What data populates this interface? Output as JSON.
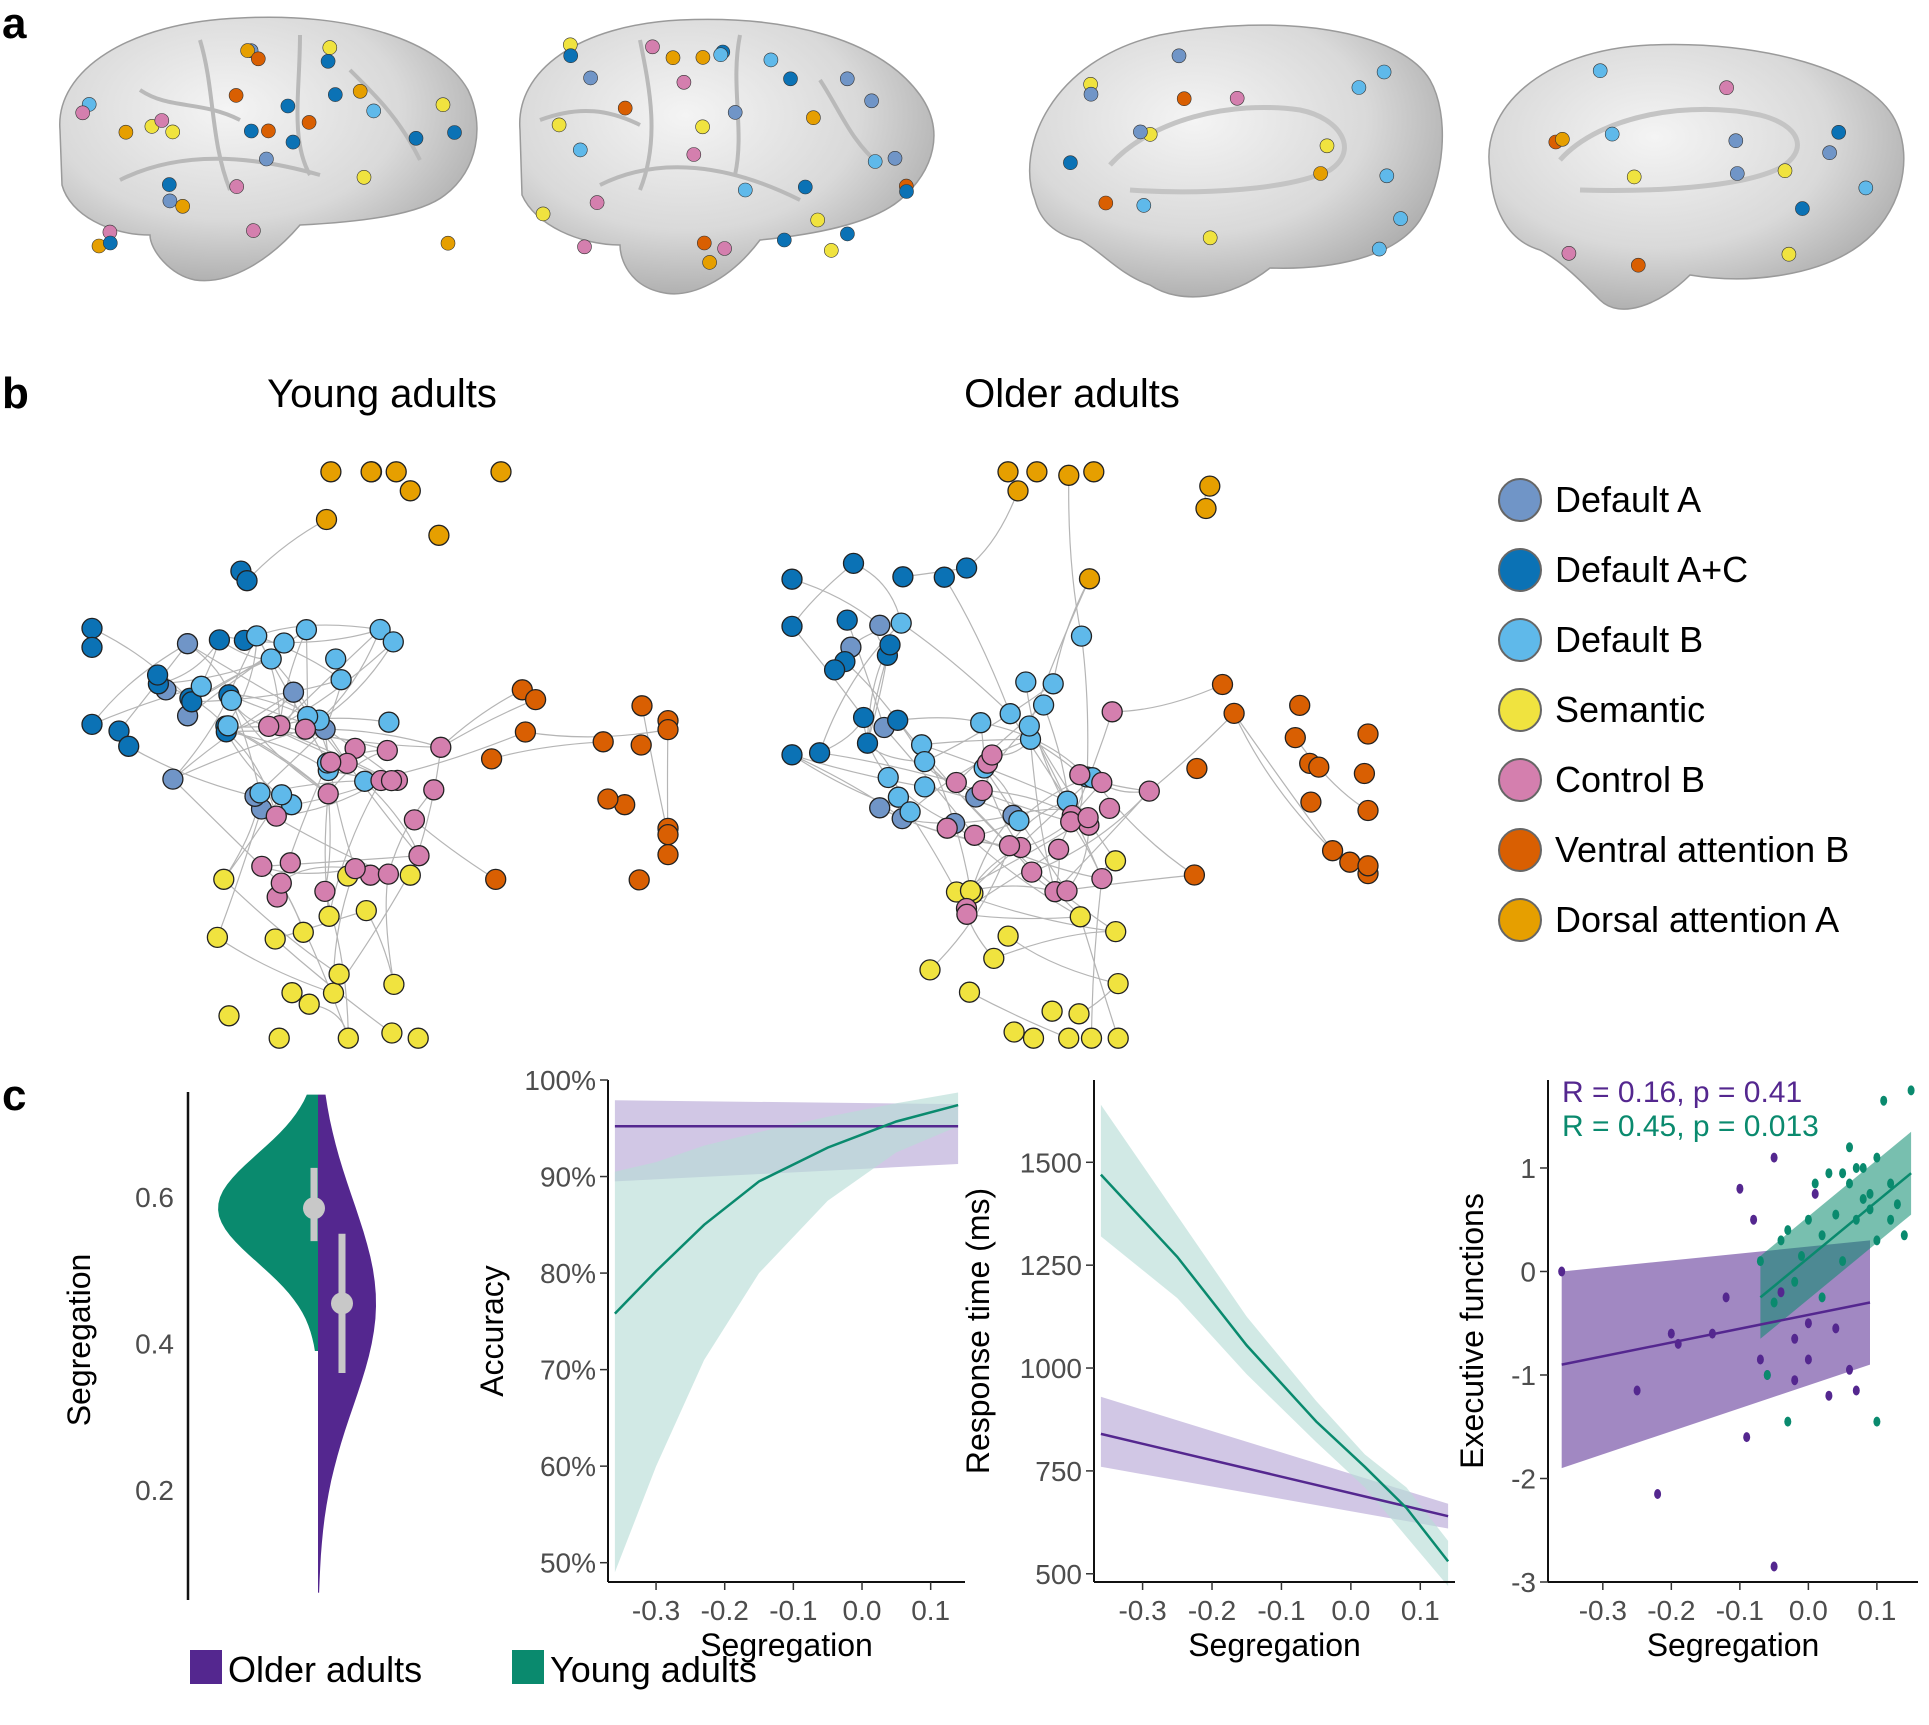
{
  "panels": {
    "a": "a",
    "b": "b",
    "c": "c"
  },
  "networks": {
    "young_title": "Young adults",
    "older_title": "Older adults",
    "legend": [
      {
        "label": "Default A",
        "color": "#7095c7"
      },
      {
        "label": "Default A+C",
        "color": "#0b72b5"
      },
      {
        "label": "Default B",
        "color": "#5fb9ea"
      },
      {
        "label": "Semantic",
        "color": "#f0e33f"
      },
      {
        "label": "Control  B",
        "color": "#d47fae"
      },
      {
        "label": "Ventral attention B",
        "color": "#d95f02"
      },
      {
        "label": "Dorsal attention A",
        "color": "#e69f00"
      }
    ]
  },
  "colors": {
    "older": "#54278f",
    "young": "#0a8a6e",
    "older_band": "#c9bde0",
    "young_band": "#b9ddd7"
  },
  "group_legend": {
    "older": "Older adults",
    "young": "Young adults"
  },
  "chart_data": [
    {
      "type": "violin",
      "ylabel": "Segregation",
      "ylim": [
        0.05,
        0.76
      ],
      "yticks": [
        "0.2",
        "0.4",
        "0.6"
      ],
      "series": [
        {
          "name": "Young adults",
          "median": 0.585,
          "iqr": [
            0.54,
            0.64
          ],
          "range": [
            0.39,
            0.74
          ]
        },
        {
          "name": "Older adults",
          "median": 0.455,
          "iqr": [
            0.36,
            0.55
          ],
          "range": [
            0.06,
            0.74
          ]
        }
      ]
    },
    {
      "type": "line",
      "xlabel": "Segregation",
      "ylabel": "Accuracy",
      "xlim": [
        -0.37,
        0.15
      ],
      "ylim": [
        48,
        100
      ],
      "xticks": [
        "-0.3",
        "-0.2",
        "-0.1",
        "0.0",
        "0.1"
      ],
      "yticks": [
        "50%",
        "60%",
        "70%",
        "80%",
        "90%",
        "100%"
      ],
      "series": [
        {
          "name": "Older adults",
          "x": [
            -0.36,
            0.14
          ],
          "y": [
            95.2,
            95.2
          ],
          "lower": [
            89.5,
            91.3
          ],
          "upper": [
            97.9,
            97.5
          ]
        },
        {
          "name": "Young adults",
          "x": [
            -0.36,
            -0.3,
            -0.23,
            -0.15,
            -0.05,
            0.05,
            0.14
          ],
          "y": [
            75.8,
            80.2,
            85.0,
            89.5,
            93.0,
            95.7,
            97.4
          ],
          "lower": [
            49.0,
            60.0,
            71.0,
            80.0,
            87.5,
            92.5,
            95.2
          ],
          "upper": [
            90.5,
            91.5,
            93.2,
            94.6,
            96.2,
            97.6,
            98.7
          ]
        }
      ]
    },
    {
      "type": "line",
      "xlabel": "Segregation",
      "ylabel": "Response time (ms)",
      "xlim": [
        -0.37,
        0.15
      ],
      "ylim": [
        480,
        1700
      ],
      "xticks": [
        "-0.3",
        "-0.2",
        "-0.1",
        "0.0",
        "0.1"
      ],
      "yticks": [
        "500",
        "750",
        "1000",
        "1250",
        "1500"
      ],
      "series": [
        {
          "name": "Older adults",
          "x": [
            -0.36,
            0.14
          ],
          "y": [
            840,
            640
          ],
          "lower": [
            760,
            610
          ],
          "upper": [
            930,
            670
          ]
        },
        {
          "name": "Young adults",
          "x": [
            -0.36,
            -0.25,
            -0.15,
            -0.05,
            0.02,
            0.08,
            0.14
          ],
          "y": [
            1470,
            1270,
            1055,
            870,
            760,
            660,
            530
          ],
          "lower": [
            1320,
            1170,
            985,
            820,
            710,
            590,
            470
          ],
          "upper": [
            1640,
            1370,
            1125,
            920,
            790,
            710,
            580
          ]
        }
      ]
    },
    {
      "type": "scatter",
      "xlabel": "Segregation",
      "ylabel": "Executive functions",
      "xlim": [
        -0.38,
        0.16
      ],
      "ylim": [
        -3.0,
        1.85
      ],
      "xticks": [
        "-0.3",
        "-0.2",
        "-0.1",
        "0.0",
        "0.1"
      ],
      "yticks": [
        "-3",
        "-2",
        "-1",
        "0",
        "1"
      ],
      "annotations": [
        {
          "text": "R = 0.16, p = 0.41",
          "series": "Older adults"
        },
        {
          "text": "R = 0.45, p = 0.013",
          "series": "Young adults"
        }
      ],
      "series": [
        {
          "name": "Older adults",
          "fit_x": [
            -0.36,
            0.09
          ],
          "fit_y": [
            -0.9,
            -0.3
          ],
          "band_lower": [
            -1.9,
            -0.9
          ],
          "band_upper": [
            0.0,
            0.3
          ],
          "points": [
            [
              -0.36,
              0.0
            ],
            [
              -0.25,
              -1.15
            ],
            [
              -0.22,
              -2.15
            ],
            [
              -0.2,
              -0.6
            ],
            [
              -0.19,
              -0.7
            ],
            [
              -0.14,
              -0.6
            ],
            [
              -0.12,
              -0.25
            ],
            [
              -0.1,
              0.8
            ],
            [
              -0.09,
              -1.6
            ],
            [
              -0.08,
              0.5
            ],
            [
              -0.07,
              -0.85
            ],
            [
              -0.06,
              -1.0
            ],
            [
              -0.05,
              1.1
            ],
            [
              -0.05,
              -2.85
            ],
            [
              -0.04,
              -0.2
            ],
            [
              -0.02,
              -0.65
            ],
            [
              -0.02,
              -1.05
            ],
            [
              0.0,
              -0.85
            ],
            [
              0.0,
              -0.5
            ],
            [
              0.01,
              0.75
            ],
            [
              0.03,
              -1.2
            ],
            [
              0.04,
              -0.55
            ],
            [
              0.06,
              -0.95
            ],
            [
              0.07,
              -1.15
            ]
          ]
        },
        {
          "name": "Young adults",
          "fit_x": [
            -0.07,
            0.15
          ],
          "fit_y": [
            -0.25,
            0.95
          ],
          "band_lower": [
            -0.65,
            0.55
          ],
          "band_upper": [
            0.15,
            1.35
          ],
          "points": [
            [
              -0.07,
              0.1
            ],
            [
              -0.06,
              -1.0
            ],
            [
              -0.05,
              -0.3
            ],
            [
              -0.04,
              0.3
            ],
            [
              -0.03,
              0.4
            ],
            [
              -0.03,
              -1.45
            ],
            [
              -0.02,
              -0.1
            ],
            [
              -0.01,
              0.15
            ],
            [
              0.0,
              0.5
            ],
            [
              0.01,
              0.85
            ],
            [
              0.02,
              0.35
            ],
            [
              0.02,
              -0.25
            ],
            [
              0.03,
              0.95
            ],
            [
              0.04,
              0.55
            ],
            [
              0.05,
              0.1
            ],
            [
              0.05,
              0.95
            ],
            [
              0.06,
              0.85
            ],
            [
              0.07,
              1.0
            ],
            [
              0.07,
              0.5
            ],
            [
              0.08,
              0.7
            ],
            [
              0.09,
              0.6
            ],
            [
              0.09,
              0.75
            ],
            [
              0.1,
              1.1
            ],
            [
              0.1,
              0.3
            ],
            [
              0.11,
              1.65
            ],
            [
              0.12,
              0.85
            ],
            [
              0.12,
              0.5
            ],
            [
              0.13,
              0.65
            ],
            [
              0.14,
              0.35
            ],
            [
              0.15,
              1.75
            ],
            [
              0.1,
              -1.45
            ],
            [
              0.08,
              1.0
            ],
            [
              0.06,
              1.2
            ]
          ]
        }
      ]
    }
  ]
}
